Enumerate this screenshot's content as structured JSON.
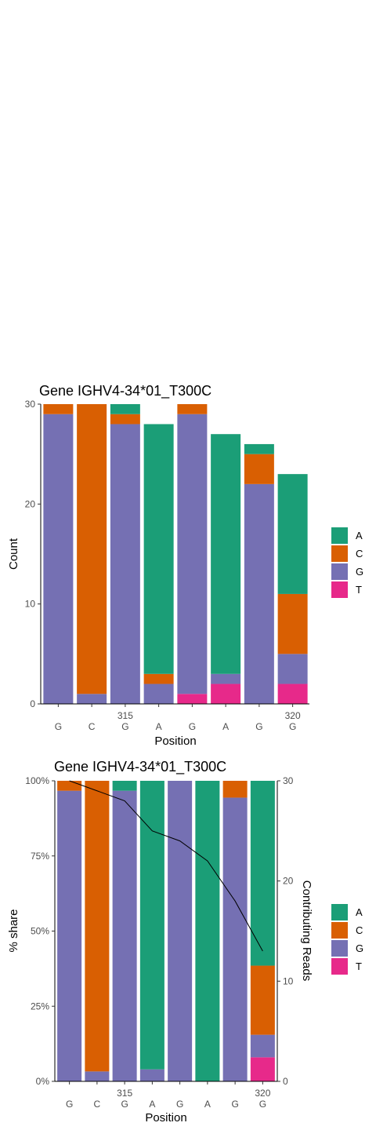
{
  "colors": {
    "A": "#1b9e77",
    "C": "#d95f02",
    "G": "#7570b3",
    "T": "#e7298a"
  },
  "legend": {
    "items": [
      {
        "key": "A",
        "label": "A"
      },
      {
        "key": "C",
        "label": "C"
      },
      {
        "key": "G",
        "label": "G"
      },
      {
        "key": "T",
        "label": "T"
      }
    ]
  },
  "chart_data": [
    {
      "type": "bar",
      "stacked": true,
      "title": "Gene IGHV4-34*01_T300C",
      "xlabel": "Position",
      "ylabel": "Count",
      "positions": [
        313,
        314,
        315,
        316,
        317,
        318,
        319,
        320
      ],
      "position_labels": [
        "",
        "",
        "315",
        "",
        "",
        "",
        "",
        "320"
      ],
      "bases": [
        "G",
        "C",
        "G",
        "A",
        "G",
        "A",
        "G",
        "G"
      ],
      "ylim": [
        0,
        30
      ],
      "yticks": [
        0,
        10,
        20,
        30
      ],
      "series": [
        {
          "name": "T",
          "values": [
            0,
            0,
            0,
            0,
            1,
            2,
            0,
            2
          ]
        },
        {
          "name": "G",
          "values": [
            29,
            1,
            28,
            2,
            28,
            1,
            22,
            3
          ]
        },
        {
          "name": "C",
          "values": [
            1,
            29,
            1,
            1,
            1,
            0,
            3,
            6
          ]
        },
        {
          "name": "A",
          "values": [
            0,
            0,
            1,
            25,
            0,
            24,
            1,
            12
          ]
        }
      ]
    },
    {
      "type": "bar",
      "stacked": true,
      "title": "Gene IGHV4-34*01_T300C",
      "xlabel": "Position",
      "ylabel": "% share",
      "y2label": "Contributing Reads",
      "positions": [
        313,
        314,
        315,
        316,
        317,
        318,
        319,
        320
      ],
      "position_labels": [
        "",
        "",
        "315",
        "",
        "",
        "",
        "",
        "320"
      ],
      "bases": [
        "G",
        "C",
        "G",
        "A",
        "G",
        "A",
        "G",
        "G"
      ],
      "ylim": [
        0,
        1
      ],
      "yticks": [
        0,
        0.25,
        0.5,
        0.75,
        1
      ],
      "ytick_labels": [
        "0%",
        "25%",
        "50%",
        "75%",
        "100%"
      ],
      "y2lim": [
        0,
        30
      ],
      "y2ticks": [
        0,
        10,
        20,
        30
      ],
      "series": [
        {
          "name": "T",
          "values": [
            0,
            0,
            0,
            0,
            0,
            0,
            0,
            0.08
          ]
        },
        {
          "name": "G",
          "values": [
            0.967,
            0.033,
            0.967,
            0.04,
            1.0,
            0,
            0.944,
            0.075
          ]
        },
        {
          "name": "C",
          "values": [
            0.033,
            0.967,
            0,
            0,
            0,
            0,
            0.056,
            0.23
          ]
        },
        {
          "name": "A",
          "values": [
            0,
            0,
            0.033,
            0.96,
            0,
            1.0,
            0,
            0.615
          ]
        }
      ],
      "line": {
        "name": "Contributing Reads",
        "values": [
          30,
          29,
          28,
          25,
          24,
          22,
          18,
          13
        ]
      }
    }
  ]
}
